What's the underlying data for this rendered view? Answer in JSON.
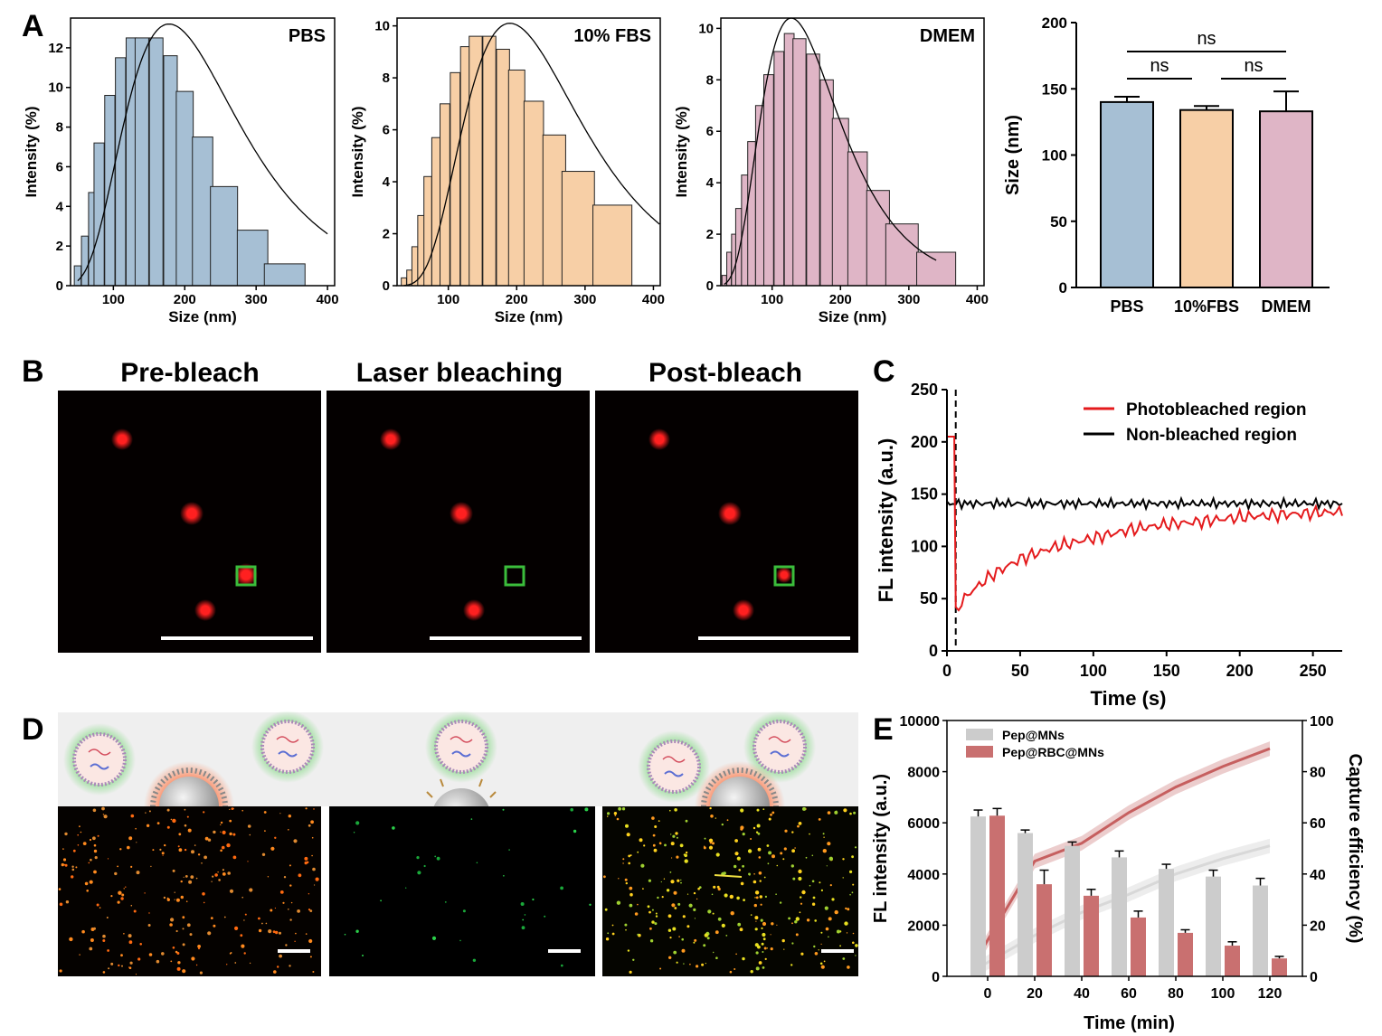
{
  "panel_labels": {
    "A": "A",
    "B": "B",
    "C": "C",
    "D": "D",
    "E": "E"
  },
  "colors": {
    "pbs": "#a6bfd4",
    "fbs": "#f7cfa6",
    "dmem": "#dfb5c6",
    "photobleached": "#e41a1c",
    "nonbleached": "#000000",
    "pep_mns": "#cccccc",
    "pep_rbc_mns": "#c97070",
    "green_box": "#3bbd3b",
    "red_spot": "#ff1e1e"
  },
  "panel_b": {
    "titles": [
      "Pre-bleach",
      "Laser bleaching",
      "Post-bleach"
    ]
  },
  "panel_d": {
    "icons": [
      "exosome-icon",
      "cell-membrane-icon",
      "microneedle-icon"
    ]
  },
  "chart_data": [
    {
      "id": "A1",
      "type": "bar",
      "title": "PBS",
      "xlabel": "Size (nm)",
      "ylabel": "Intensity (%)",
      "xlim": [
        40,
        410
      ],
      "ylim": [
        0,
        13.5
      ],
      "xticks": [
        100,
        200,
        300,
        400
      ],
      "yticks": [
        0,
        2,
        4,
        6,
        8,
        10,
        12
      ],
      "bin_centers": [
        50,
        60,
        70,
        80,
        95,
        110,
        125,
        140,
        160,
        180,
        200,
        225,
        255,
        295,
        340,
        400
      ],
      "values": [
        1.0,
        2.5,
        4.7,
        7.2,
        9.6,
        11.5,
        12.5,
        12.5,
        12.5,
        11.6,
        9.8,
        7.5,
        5.0,
        2.8,
        1.1,
        0
      ],
      "fit_curve": {
        "type": "lognormal",
        "peak_x": 178,
        "peak_y": 13.2,
        "x_range": [
          50,
          400
        ]
      }
    },
    {
      "id": "A2",
      "type": "bar",
      "title": "10% FBS",
      "xlabel": "Size (nm)",
      "ylabel": "Intensity (%)",
      "xlim": [
        25,
        410
      ],
      "ylim": [
        0,
        10.3
      ],
      "xticks": [
        100,
        200,
        300,
        400
      ],
      "yticks": [
        0,
        2,
        4,
        6,
        8,
        10
      ],
      "bin_centers": [
        35,
        43,
        51,
        60,
        70,
        82,
        95,
        110,
        125,
        140,
        160,
        180,
        200,
        225,
        255,
        290,
        340,
        400
      ],
      "values": [
        0.3,
        0.6,
        1.5,
        2.7,
        4.2,
        5.7,
        7.0,
        8.2,
        9.2,
        9.6,
        9.6,
        9.1,
        8.3,
        7.1,
        5.8,
        4.4,
        3.1,
        0
      ],
      "fit_curve": {
        "type": "lognormal",
        "peak_x": 190,
        "peak_y": 10.1,
        "x_range": [
          35,
          410
        ]
      }
    },
    {
      "id": "A3",
      "type": "bar",
      "title": "DMEM",
      "xlabel": "Size (nm)",
      "ylabel": "Intensity (%)",
      "xlim": [
        25,
        410
      ],
      "ylim": [
        0,
        10.4
      ],
      "xticks": [
        100,
        200,
        300,
        400
      ],
      "yticks": [
        0,
        2,
        4,
        6,
        8,
        10
      ],
      "bin_centers": [
        30,
        37,
        44,
        51,
        60,
        70,
        82,
        95,
        110,
        125,
        140,
        160,
        180,
        200,
        225,
        255,
        290,
        340,
        400
      ],
      "values": [
        0.4,
        1.3,
        2.0,
        3.0,
        4.3,
        5.6,
        7.0,
        8.2,
        9.1,
        9.8,
        9.6,
        9.0,
        8.0,
        6.5,
        5.2,
        3.7,
        2.4,
        1.3,
        0
      ],
      "fit_curve": {
        "type": "lognormal",
        "peak_x": 128,
        "peak_y": 10.4,
        "x_range": [
          30,
          340
        ]
      }
    },
    {
      "id": "A4",
      "type": "bar",
      "categories": [
        "PBS",
        "10%FBS",
        "DMEM"
      ],
      "values": [
        140,
        134,
        133
      ],
      "errors": [
        4,
        3,
        15
      ],
      "ylabel": "Size (nm)",
      "ylim": [
        0,
        200
      ],
      "yticks": [
        0,
        50,
        100,
        150,
        200
      ],
      "significance": [
        {
          "from": 0,
          "to": 1,
          "label": "ns"
        },
        {
          "from": 1,
          "to": 2,
          "label": "ns"
        },
        {
          "from": 0,
          "to": 2,
          "label": "ns"
        }
      ]
    },
    {
      "id": "C",
      "type": "line",
      "xlabel": "Time (s)",
      "ylabel": "FL intensity (a.u.)",
      "xlim": [
        0,
        270
      ],
      "ylim": [
        0,
        250
      ],
      "xticks": [
        0,
        50,
        100,
        150,
        200,
        250
      ],
      "yticks": [
        0,
        50,
        100,
        150,
        200,
        250
      ],
      "bleach_time": 6,
      "series": [
        {
          "name": "Photobleached region",
          "x": [
            0,
            5,
            6,
            8,
            15,
            30,
            50,
            75,
            100,
            125,
            150,
            175,
            200,
            225,
            250,
            270
          ],
          "values": [
            205,
            205,
            42,
            43,
            55,
            72,
            88,
            100,
            108,
            116,
            121,
            124,
            128,
            130,
            132,
            133
          ]
        },
        {
          "name": "Non-bleached region",
          "x": [
            0,
            270
          ],
          "values": [
            141,
            141
          ]
        }
      ],
      "legend_position": "top-right"
    },
    {
      "id": "E",
      "type": "bar",
      "categories": [
        "0",
        "20",
        "40",
        "60",
        "80",
        "100",
        "120"
      ],
      "xlabel": "Time (min)",
      "ylabel": "FL intensity (a.u.)",
      "y2label": "Capture efficiency (%)",
      "ylim": [
        0,
        10000
      ],
      "y2lim": [
        0,
        100
      ],
      "yticks": [
        0,
        2000,
        4000,
        6000,
        8000,
        10000
      ],
      "y2ticks": [
        0,
        20,
        40,
        60,
        80,
        100
      ],
      "series": [
        {
          "name": "Pep@MNs",
          "values": [
            6250,
            5600,
            5100,
            4650,
            4200,
            3900,
            3550
          ],
          "errors": [
            250,
            120,
            150,
            250,
            180,
            250,
            280
          ]
        },
        {
          "name": "Pep@RBC@MNs",
          "values": [
            6280,
            3600,
            3150,
            2300,
            1700,
            1200,
            700
          ],
          "errors": [
            280,
            550,
            250,
            250,
            120,
            150,
            80
          ]
        }
      ],
      "capture_lines": [
        {
          "name": "Pep@MNs",
          "values": [
            3,
            16,
            25,
            32,
            40,
            46,
            51
          ]
        },
        {
          "name": "Pep@RBC@MNs",
          "values": [
            7,
            45,
            52,
            64,
            74,
            82,
            89
          ]
        }
      ],
      "legend_position": "top-left"
    }
  ]
}
